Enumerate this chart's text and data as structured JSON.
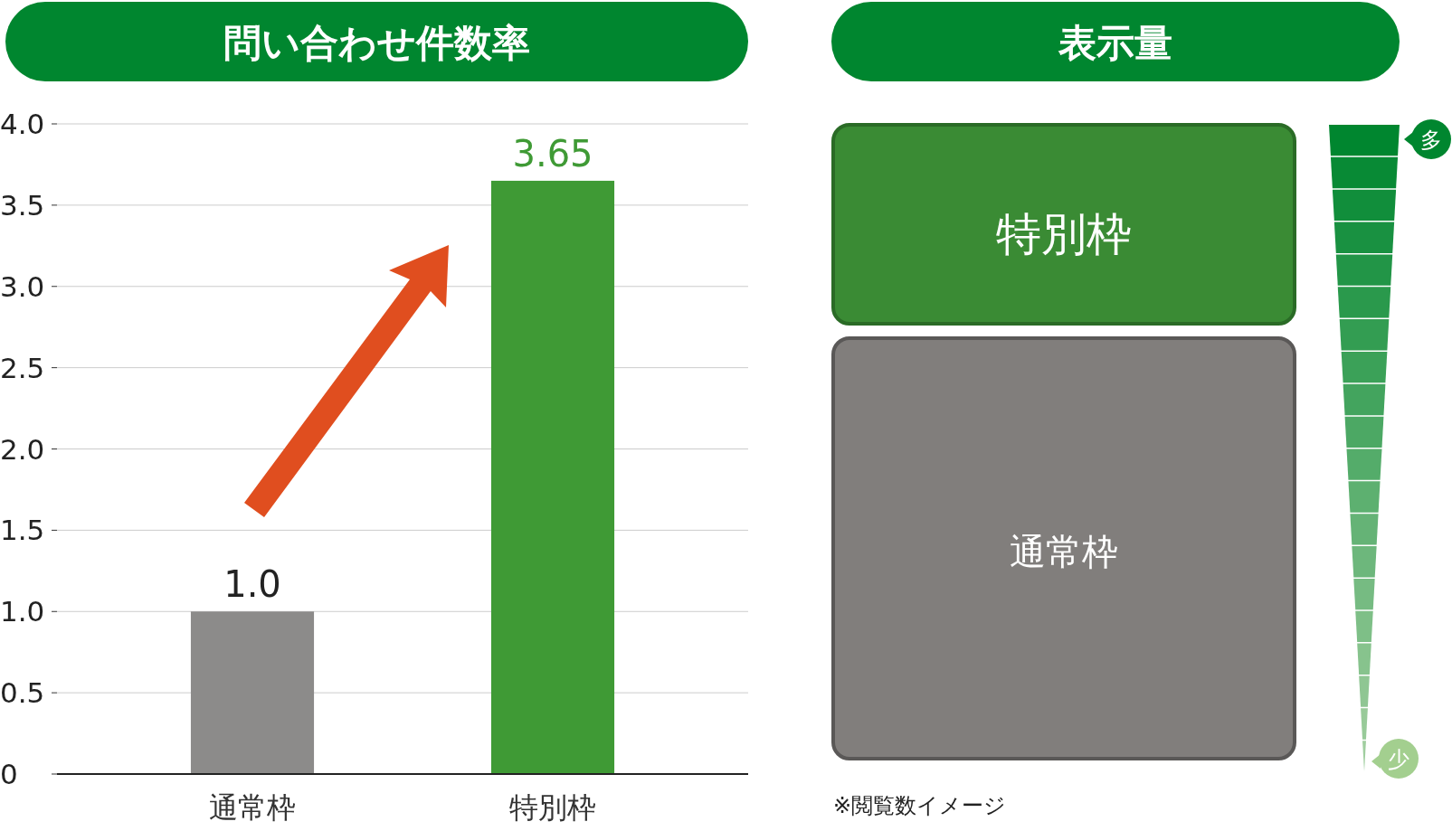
{
  "chart_data": [
    {
      "type": "bar",
      "title": "問い合わせ件数率",
      "categories": [
        "通常枠",
        "特別枠"
      ],
      "values": [
        1.0,
        3.65
      ],
      "colors": [
        "#8c8b8a",
        "#3f9a35"
      ],
      "value_labels": [
        "1.0",
        "3.65"
      ],
      "ylim": [
        0,
        4
      ],
      "yticks": [
        0,
        {
          "value": 0.5,
          "label": "0.5"
        },
        {
          "value": 1,
          "label": "1.0"
        },
        {
          "value": 1.5,
          "label": "1.5"
        },
        {
          "value": 2,
          "label": "2.0"
        },
        {
          "value": 2.5,
          "label": "2.5"
        },
        {
          "value": 3,
          "label": "3.0"
        },
        {
          "value": 3.5,
          "label": "3.5"
        },
        {
          "value": 4,
          "label": "4.0"
        }
      ],
      "grid": "y"
    },
    {
      "type": "other",
      "title": "表示量",
      "annotations": [
        "特別枠",
        "通常枠",
        "多",
        "少",
        "※閲覧数イメージ"
      ]
    }
  ]
}
